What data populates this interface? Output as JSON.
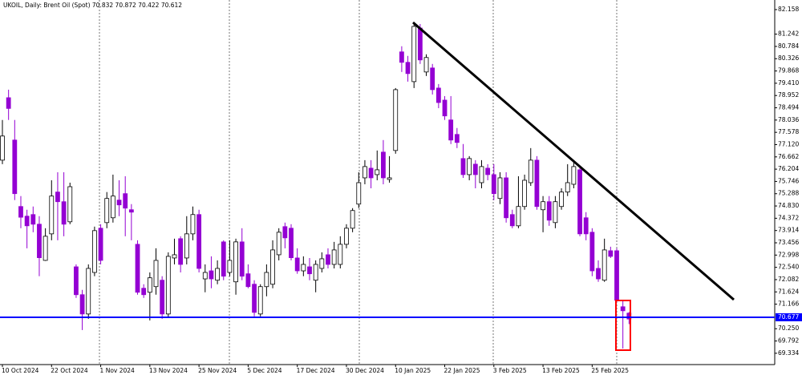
{
  "chart_data": {
    "type": "candlestick",
    "title": "UKOIL, Daily: Brent Oil (Spot)",
    "up_color": "#ffffff",
    "down_color": "#9400d3",
    "categories": [
      "10 Oct 2024",
      null,
      null,
      null,
      null,
      null,
      null,
      null,
      "22 Oct 2024",
      null,
      null,
      null,
      null,
      null,
      null,
      null,
      "1 Nov 2024",
      null,
      null,
      null,
      null,
      null,
      null,
      null,
      "13 Nov 2024",
      null,
      null,
      null,
      null,
      null,
      null,
      null,
      "25 Nov 2024",
      null,
      null,
      null,
      null,
      null,
      null,
      null,
      "5 Dec 2024",
      null,
      null,
      null,
      null,
      null,
      null,
      null,
      "17 Dec 2024",
      null,
      null,
      null,
      null,
      null,
      null,
      null,
      "30 Dec 2024",
      null,
      null,
      null,
      null,
      null,
      null,
      null,
      "10 Jan 2025",
      null,
      null,
      null,
      null,
      null,
      null,
      null,
      "22 Jan 2025",
      null,
      null,
      null,
      null,
      null,
      null,
      null,
      "3 Feb 2025",
      null,
      null,
      null,
      null,
      null,
      null,
      null,
      "13 Feb 2025",
      null,
      null,
      null,
      null,
      null,
      null,
      null,
      "25 Feb 2025",
      null,
      null,
      null,
      null,
      null,
      null
    ],
    "open": [
      76.54,
      78.87,
      77.29,
      74.81,
      74.45,
      74.51,
      74.15,
      72.8,
      73.79,
      75.35,
      74.99,
      74.24,
      72.56,
      71.52,
      70.8,
      72.35,
      74.0,
      74.21,
      74.39,
      75.05,
      75.29,
      74.69,
      73.4,
      71.76,
      71.61,
      71.82,
      72.06,
      70.8,
      72.89,
      73.61,
      72.89,
      73.79,
      74.51,
      72.11,
      72.41,
      72.06,
      73.49,
      72.35,
      72.0,
      73.49,
      72.3,
      71.91,
      70.8,
      71.82,
      71.91,
      73.01,
      74.06,
      74.0,
      72.89,
      72.41,
      72.56,
      72.06,
      72.5,
      73.01,
      72.65,
      72.65,
      73.4,
      74.0,
      74.9,
      75.88,
      76.24,
      76.0,
      76.84,
      75.82,
      76.9,
      80.58,
      80.19,
      79.47,
      81.47,
      79.83,
      79.98,
      79.23,
      78.78,
      78.04,
      77.5,
      76.6,
      76.0,
      76.39,
      75.7,
      76.24,
      76.0,
      75.11,
      75.88,
      74.51,
      74.09,
      74.81,
      75.7,
      76.54,
      74.69,
      74.99,
      74.21,
      74.81,
      75.35,
      75.64,
      76.18,
      74.39,
      73.85,
      72.5,
      72.06,
      73.16,
      73.16,
      71.07,
      70.832
    ],
    "high": [
      78.04,
      79.17,
      78.04,
      75.2,
      74.69,
      74.81,
      74.45,
      74.0,
      75.79,
      76.09,
      76.09,
      75.7,
      72.65,
      71.7,
      72.65,
      74.06,
      74.15,
      75.35,
      76.0,
      75.79,
      75.94,
      74.9,
      73.55,
      71.91,
      72.35,
      73.25,
      72.21,
      73.1,
      73.61,
      73.7,
      74.45,
      74.81,
      74.69,
      72.65,
      72.95,
      72.8,
      73.55,
      73.55,
      73.61,
      74.0,
      72.65,
      72.06,
      71.91,
      72.65,
      73.55,
      74.0,
      74.21,
      74.15,
      73.25,
      72.95,
      72.89,
      72.8,
      73.1,
      73.25,
      73.49,
      73.7,
      74.15,
      74.75,
      76.09,
      76.54,
      76.54,
      76.9,
      77.29,
      76.69,
      79.23,
      80.79,
      80.43,
      81.62,
      81.62,
      80.49,
      80.13,
      79.38,
      78.93,
      78.93,
      77.74,
      77.14,
      76.69,
      76.54,
      76.54,
      76.39,
      76.39,
      76.09,
      76.09,
      74.69,
      75.94,
      76.0,
      76.99,
      76.69,
      75.2,
      75.2,
      75.2,
      75.49,
      76.39,
      76.54,
      76.3,
      74.6,
      74.0,
      72.8,
      73.61,
      73.31,
      73.25,
      71.31,
      70.872
    ],
    "low": [
      76.39,
      78.04,
      75.05,
      74.0,
      73.25,
      73.85,
      72.21,
      72.78,
      73.55,
      73.55,
      73.7,
      74.15,
      71.4,
      70.2,
      70.62,
      72.21,
      72.65,
      74.0,
      74.21,
      74.45,
      73.7,
      73.55,
      71.52,
      71.4,
      70.56,
      71.52,
      70.62,
      70.68,
      72.65,
      72.35,
      72.65,
      73.55,
      72.35,
      71.61,
      71.76,
      71.91,
      72.06,
      72.21,
      71.52,
      72.06,
      71.76,
      70.71,
      70.71,
      71.46,
      71.76,
      72.8,
      73.25,
      72.8,
      72.3,
      72.21,
      72.06,
      71.61,
      72.35,
      72.5,
      72.5,
      72.5,
      73.25,
      73.85,
      74.75,
      75.64,
      75.49,
      75.79,
      75.64,
      75.7,
      76.78,
      79.83,
      79.47,
      79.23,
      80.13,
      79.68,
      78.99,
      78.48,
      78.04,
      77.14,
      76.99,
      75.88,
      75.79,
      75.49,
      75.49,
      75.79,
      75.05,
      74.9,
      74.21,
      74.0,
      74.0,
      74.69,
      75.58,
      74.69,
      73.85,
      74.09,
      74.0,
      74.69,
      75.2,
      75.49,
      73.7,
      73.55,
      72.21,
      72.0,
      72.0,
      72.89,
      71.25,
      69.51,
      70.422
    ],
    "close": [
      77.44,
      78.47,
      75.29,
      74.41,
      74.09,
      74.15,
      72.9,
      73.7,
      75.2,
      74.99,
      74.15,
      75.55,
      71.52,
      70.8,
      72.5,
      73.91,
      72.8,
      75.11,
      75.2,
      74.87,
      74.75,
      74.6,
      71.61,
      71.52,
      72.15,
      72.8,
      70.8,
      72.95,
      73.01,
      72.65,
      73.79,
      74.51,
      72.5,
      72.35,
      72.11,
      72.5,
      72.21,
      72.8,
      73.49,
      72.21,
      71.82,
      70.86,
      71.82,
      72.35,
      73.19,
      73.85,
      73.64,
      72.9,
      72.41,
      72.65,
      72.3,
      72.65,
      72.86,
      72.65,
      73.19,
      73.4,
      74.0,
      74.66,
      75.7,
      76.3,
      75.88,
      76.18,
      75.88,
      75.88,
      79.17,
      80.19,
      79.77,
      81.53,
      80.28,
      80.37,
      79.17,
      78.69,
      78.19,
      77.29,
      77.2,
      76.0,
      76.6,
      76.0,
      76.3,
      76.0,
      75.29,
      75.88,
      74.39,
      74.09,
      74.81,
      75.79,
      76.54,
      74.81,
      74.99,
      74.3,
      74.99,
      75.35,
      75.7,
      76.3,
      73.79,
      73.79,
      72.41,
      72.11,
      73.19,
      72.95,
      71.31,
      70.92,
      70.612
    ],
    "current_price": 70.677,
    "current_price_color": "#0000ff",
    "ylim": [
      68.912,
      82.516
    ],
    "yticks": [
      82.158,
      81.242,
      80.784,
      80.326,
      79.868,
      {
        "value": 79.41,
        "label": "79.410"
      },
      78.952,
      78.494,
      78.036,
      77.578,
      {
        "value": 77.12,
        "label": "77.120"
      },
      76.662,
      76.204,
      75.746,
      75.288,
      {
        "value": 74.83,
        "label": "74.830"
      },
      74.372,
      73.914,
      73.456,
      72.998,
      {
        "value": 72.54,
        "label": "72.540"
      },
      72.082,
      71.624,
      71.166,
      {
        "value": 70.25,
        "label": "70.250"
      },
      69.792,
      69.334
    ]
  }
}
